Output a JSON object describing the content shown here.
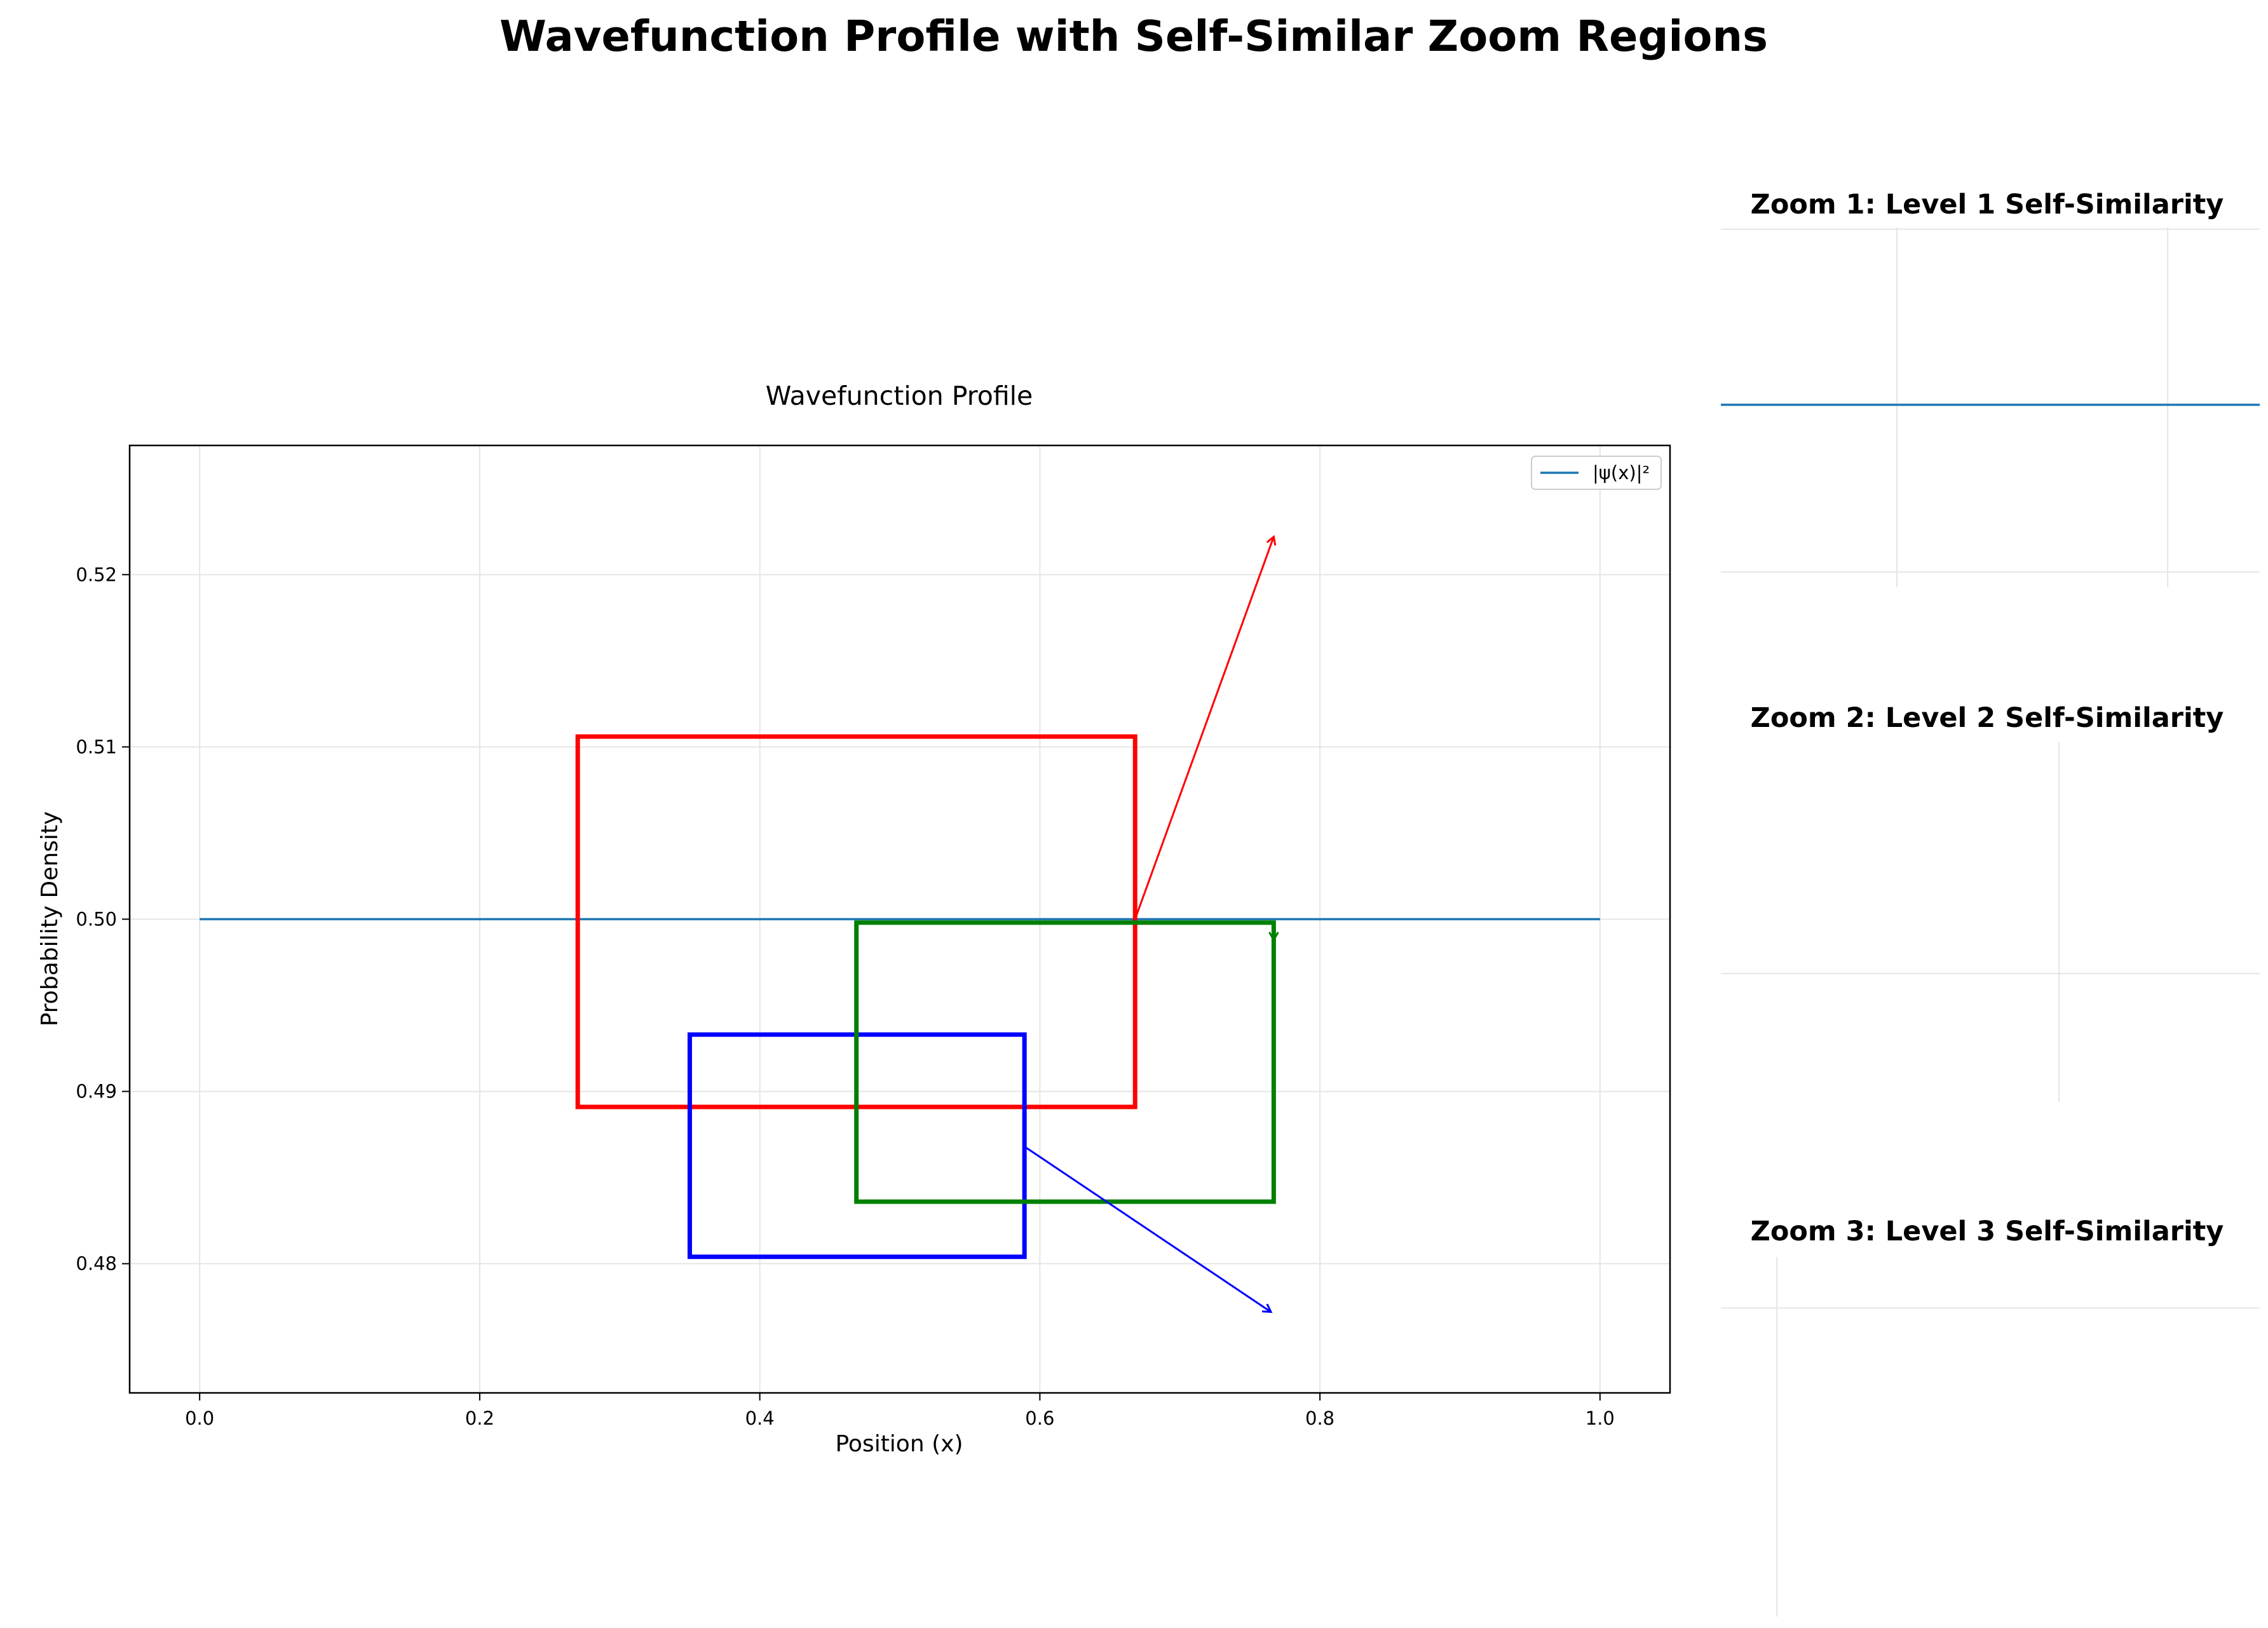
{
  "figure": {
    "title": "Wavefunction Profile with Self-Similar Zoom Regions"
  },
  "chart_data": [
    {
      "type": "line",
      "title": "Wavefunction Profile",
      "xlabel": "Position (x)",
      "ylabel": "Probability Density",
      "xlim": [
        -0.05,
        1.05
      ],
      "ylim": [
        0.4725,
        0.5275
      ],
      "xticks": [
        0.0,
        0.2,
        0.4,
        0.6,
        0.8,
        1.0
      ],
      "xtick_labels": [
        "0.0",
        "0.2",
        "0.4",
        "0.6",
        "0.8",
        "1.0"
      ],
      "yticks": [
        0.48,
        0.49,
        0.5,
        0.51,
        0.52
      ],
      "ytick_labels": [
        "0.48",
        "0.49",
        "0.50",
        "0.51",
        "0.52"
      ],
      "grid": true,
      "legend_position": "top-right",
      "series": [
        {
          "name": "|ψ(x)|²",
          "color": "#1f77b4",
          "x": [
            0.0,
            1.0
          ],
          "y": [
            0.5,
            0.5
          ]
        }
      ],
      "zoom_boxes": [
        {
          "color": "#ff0000",
          "x0": 0.27,
          "x1": 0.668,
          "y0": 0.4891,
          "y1": 0.5106
        },
        {
          "color": "#0000ff",
          "x0": 0.35,
          "x1": 0.589,
          "y0": 0.4804,
          "y1": 0.4933
        },
        {
          "color": "#008000",
          "x0": 0.469,
          "x1": 0.767,
          "y0": 0.4836,
          "y1": 0.4998
        }
      ],
      "arrows": [
        {
          "color": "#ff0000",
          "from": [
            0.668,
            0.5
          ],
          "to": [
            0.767,
            0.5222
          ]
        },
        {
          "color": "#008000",
          "from": [
            0.767,
            0.4998
          ],
          "to": [
            0.767,
            0.4988
          ]
        },
        {
          "color": "#0000ff",
          "from": [
            0.589,
            0.4868
          ],
          "to": [
            0.765,
            0.4772
          ]
        }
      ]
    },
    {
      "type": "line",
      "title": "Zoom 1: Level 1 Self-Similarity",
      "grid": true,
      "series": [
        {
          "color": "#1f77b4",
          "y_level": 0.5
        }
      ],
      "xlim": [
        0.27,
        0.668
      ],
      "grid_x": [
        0.4,
        0.6
      ],
      "ylim": [
        0.4891,
        0.5106
      ],
      "grid_y": [
        0.5105,
        0.49
      ]
    },
    {
      "type": "line",
      "title": "Zoom 2: Level 2 Self-Similarity",
      "grid": true,
      "xlim": [
        0.35,
        0.589
      ],
      "grid_x": [
        0.5
      ],
      "ylim": [
        0.4804,
        0.4933
      ],
      "grid_y": [
        0.485
      ]
    },
    {
      "type": "line",
      "title": "Zoom 3: Level 3 Self-Similarity",
      "grid": true,
      "xlim": [
        0.469,
        0.767
      ],
      "grid_x": [
        0.5
      ],
      "ylim": [
        0.4836,
        0.4998
      ],
      "grid_y": [
        0.4975
      ]
    }
  ]
}
